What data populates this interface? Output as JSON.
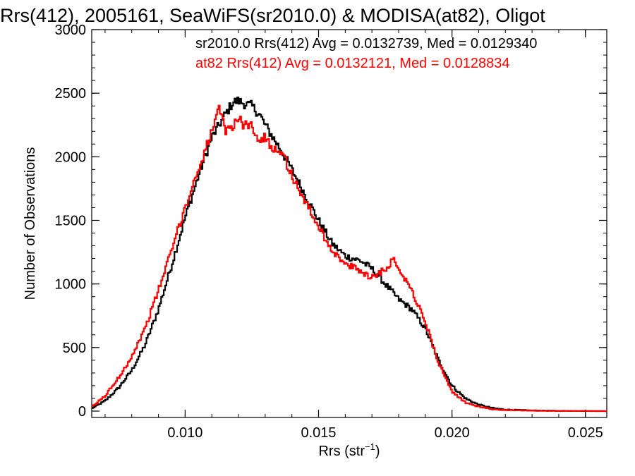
{
  "chart_data": {
    "type": "line",
    "title": "Rrs(412), 2005161, SeaWiFS(sr2010.0) & MODISA(at82), Oligot",
    "xlabel_main": "Rrs (str",
    "xlabel_exp": "−1",
    "xlabel_close": ")",
    "ylabel": "Number of Observations",
    "xlim": [
      0.0065,
      0.0258
    ],
    "ylim": [
      -50,
      3000
    ],
    "x_ticks": [
      0.01,
      0.015,
      0.02,
      0.025
    ],
    "x_tick_labels": [
      "0.010",
      "0.015",
      "0.020",
      "0.025"
    ],
    "y_ticks": [
      0,
      500,
      1000,
      1500,
      2000,
      2500,
      3000
    ],
    "y_tick_labels": [
      "0",
      "500",
      "1000",
      "1500",
      "2000",
      "2500",
      "3000"
    ],
    "step": "histogram",
    "annotations": [
      "sr2010.0 Rrs(412) Avg = 0.0132739, Med = 0.0129340",
      "at82 Rrs(412) Avg = 0.0132121, Med = 0.0128834"
    ],
    "series": [
      {
        "name": "sr2010.0",
        "color": "#000000",
        "x": [
          0.0065,
          0.007,
          0.0075,
          0.008,
          0.0085,
          0.009,
          0.0095,
          0.01,
          0.0105,
          0.011,
          0.0115,
          0.0118,
          0.012,
          0.0122,
          0.0125,
          0.0128,
          0.013,
          0.0133,
          0.0136,
          0.014,
          0.0145,
          0.015,
          0.0155,
          0.016,
          0.0163,
          0.0166,
          0.017,
          0.0175,
          0.018,
          0.0185,
          0.019,
          0.0195,
          0.02,
          0.0205,
          0.021,
          0.0215,
          0.022,
          0.023,
          0.024,
          0.025,
          0.0258
        ],
        "y": [
          20,
          80,
          180,
          320,
          520,
          800,
          1150,
          1520,
          1850,
          2150,
          2330,
          2430,
          2440,
          2420,
          2400,
          2330,
          2250,
          2150,
          2050,
          1900,
          1700,
          1500,
          1320,
          1220,
          1200,
          1180,
          1120,
          1000,
          880,
          800,
          650,
          400,
          200,
          100,
          50,
          25,
          12,
          5,
          2,
          1,
          0
        ]
      },
      {
        "name": "at82",
        "color": "#ff0000",
        "x": [
          0.0065,
          0.007,
          0.0075,
          0.008,
          0.0085,
          0.009,
          0.0095,
          0.01,
          0.0105,
          0.011,
          0.0113,
          0.0115,
          0.0118,
          0.012,
          0.0122,
          0.0125,
          0.0128,
          0.013,
          0.0133,
          0.0136,
          0.014,
          0.0145,
          0.015,
          0.0155,
          0.016,
          0.0163,
          0.0166,
          0.017,
          0.0175,
          0.0178,
          0.018,
          0.0185,
          0.019,
          0.0195,
          0.02,
          0.0205,
          0.021,
          0.0215,
          0.022,
          0.023,
          0.024,
          0.025,
          0.0258
        ],
        "y": [
          30,
          120,
          260,
          430,
          650,
          950,
          1270,
          1600,
          1900,
          2200,
          2380,
          2200,
          2250,
          2300,
          2250,
          2250,
          2120,
          2150,
          2070,
          2050,
          1850,
          1650,
          1450,
          1270,
          1150,
          1130,
          1100,
          1050,
          1120,
          1190,
          1130,
          950,
          700,
          380,
          150,
          70,
          35,
          15,
          8,
          3,
          2,
          1,
          0
        ]
      }
    ]
  }
}
